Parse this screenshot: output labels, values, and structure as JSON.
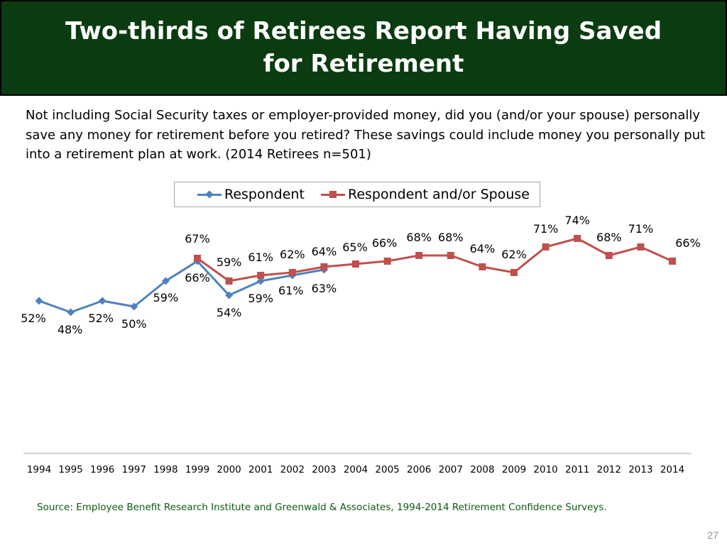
{
  "slide": {
    "title": "Two-thirds of Retirees Report Having Saved for Retirement",
    "question": "Not including Social Security taxes or employer-provided money, did you (and/or your spouse) personally save any money for retirement before you retired?  These savings could include money you personally put into a retirement plan at work. (2014 Retirees n=501)",
    "source": "Source:  Employee Benefit Research Institute and Greenwald & Associates, 1994-2014 Retirement Confidence Surveys.",
    "page_number": "27"
  },
  "colors": {
    "title_bg": "#0b3b10",
    "respondent": "#4f81bd",
    "spouse": "#c0504d",
    "source_text": "#0b5a12"
  },
  "chart_data": {
    "type": "line",
    "categories": [
      "1994",
      "1995",
      "1996",
      "1997",
      "1998",
      "1999",
      "2000",
      "2001",
      "2002",
      "2003",
      "2004",
      "2005",
      "2006",
      "2007",
      "2008",
      "2009",
      "2010",
      "2011",
      "2012",
      "2013",
      "2014"
    ],
    "ylim": [
      0,
      90
    ],
    "legend": "top",
    "grid": false,
    "series": [
      {
        "name": "Respondent",
        "marker": "diamond",
        "values": [
          52,
          48,
          52,
          50,
          59,
          66,
          54,
          59,
          61,
          63,
          null,
          null,
          null,
          null,
          null,
          null,
          null,
          null,
          null,
          null,
          null
        ],
        "labels": [
          "52%",
          "48%",
          "52%",
          "50%",
          "59%",
          "66%",
          "54%",
          "59%",
          "61%",
          "63%",
          "",
          "",
          "",
          "",
          "",
          "",
          "",
          "",
          "",
          "",
          ""
        ]
      },
      {
        "name": "Respondent and/or Spouse",
        "marker": "square",
        "values": [
          null,
          null,
          null,
          null,
          null,
          67,
          59,
          61,
          62,
          64,
          65,
          66,
          68,
          68,
          64,
          62,
          71,
          74,
          68,
          71,
          66
        ],
        "labels": [
          "",
          "",
          "",
          "",
          "",
          "67%",
          "59%",
          "61%",
          "62%",
          "64%",
          "65%",
          "66%",
          "68%",
          "68%",
          "64%",
          "62%",
          "71%",
          "74%",
          "68%",
          "71%",
          "66%"
        ]
      }
    ]
  }
}
